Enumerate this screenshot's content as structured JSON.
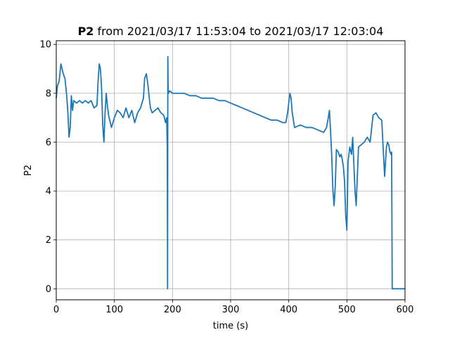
{
  "chart_data": {
    "type": "line",
    "title_bold": "P2",
    "title_rest": " from 2021/03/17 11:53:04 to 2021/03/17 12:03:04",
    "xlabel": "time (s)",
    "ylabel": "P2",
    "xlim": [
      0,
      600
    ],
    "ylim": [
      -0.45,
      10.15
    ],
    "xticks": [
      0,
      100,
      200,
      300,
      400,
      500,
      600
    ],
    "yticks": [
      0,
      2,
      4,
      6,
      8,
      10
    ],
    "grid": true,
    "series": [
      {
        "color": "#1f77b4",
        "x": [
          0,
          2,
          5,
          8,
          10,
          12,
          15,
          18,
          20,
          22,
          24,
          26,
          28,
          30,
          35,
          40,
          45,
          50,
          55,
          60,
          65,
          70,
          72,
          74,
          76,
          78,
          80,
          82,
          84,
          86,
          88,
          90,
          92,
          95,
          100,
          105,
          110,
          115,
          120,
          125,
          130,
          135,
          140,
          145,
          150,
          152,
          155,
          158,
          160,
          162,
          165,
          170,
          175,
          180,
          185,
          188,
          190,
          191,
          191.5,
          192,
          192.5,
          193,
          195,
          200,
          210,
          220,
          230,
          240,
          250,
          260,
          270,
          280,
          290,
          300,
          310,
          320,
          330,
          340,
          350,
          360,
          370,
          380,
          390,
          395,
          398,
          400,
          402,
          404,
          406,
          410,
          420,
          430,
          440,
          450,
          460,
          465,
          468,
          470,
          472,
          474,
          476,
          478,
          480,
          482,
          485,
          488,
          490,
          492,
          494,
          496,
          498,
          500,
          502,
          505,
          508,
          510,
          512,
          514,
          516,
          520,
          525,
          530,
          535,
          540,
          545,
          550,
          555,
          560,
          563,
          565,
          568,
          570,
          572,
          574,
          576,
          577,
          578,
          580,
          600
        ],
        "y": [
          7.8,
          8.3,
          8.5,
          9.2,
          9.0,
          8.8,
          8.6,
          7.9,
          7.2,
          6.2,
          6.6,
          7.9,
          7.3,
          7.7,
          7.6,
          7.7,
          7.6,
          7.7,
          7.6,
          7.7,
          7.4,
          7.5,
          8.5,
          9.2,
          9.0,
          8.2,
          6.7,
          6.0,
          7.2,
          8.0,
          7.5,
          7.1,
          6.9,
          6.6,
          7.0,
          7.3,
          7.2,
          7.0,
          7.4,
          7.0,
          7.3,
          6.8,
          7.2,
          7.4,
          7.8,
          8.6,
          8.8,
          8.3,
          7.8,
          7.4,
          7.2,
          7.3,
          7.4,
          7.2,
          7.1,
          6.8,
          7.0,
          5.8,
          0.0,
          9.5,
          8.1,
          8.0,
          8.1,
          8.0,
          8.0,
          8.0,
          7.9,
          7.9,
          7.8,
          7.8,
          7.8,
          7.7,
          7.7,
          7.6,
          7.5,
          7.4,
          7.3,
          7.2,
          7.1,
          7.0,
          6.9,
          6.9,
          6.8,
          6.8,
          7.2,
          7.6,
          8.0,
          7.8,
          7.2,
          6.6,
          6.7,
          6.6,
          6.6,
          6.5,
          6.4,
          6.6,
          7.0,
          7.3,
          6.4,
          5.4,
          4.0,
          3.4,
          4.2,
          5.7,
          5.6,
          5.4,
          5.5,
          5.3,
          5.0,
          4.4,
          3.0,
          2.4,
          5.2,
          5.8,
          5.5,
          6.2,
          5.1,
          4.0,
          3.4,
          5.8,
          5.9,
          6.0,
          6.2,
          6.0,
          7.1,
          7.2,
          7.0,
          6.9,
          5.5,
          4.6,
          5.8,
          6.0,
          5.9,
          5.6,
          5.5,
          5.6,
          0.0,
          0.0,
          0.0
        ]
      }
    ]
  }
}
